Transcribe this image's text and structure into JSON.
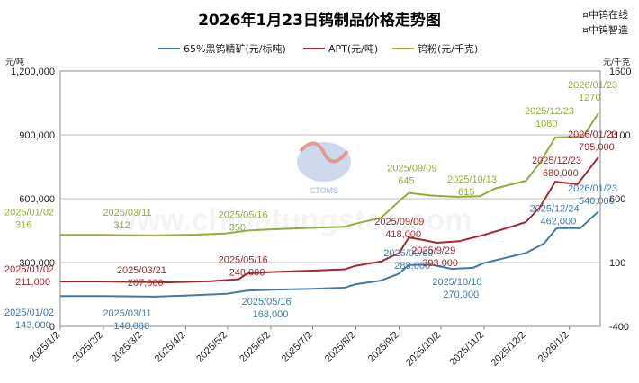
{
  "brand": {
    "line1": "¤中钨在线",
    "line2": "¤中钨智造"
  },
  "watermark": {
    "url": "www.chinatungsten.com",
    "logo_text": "CTOMS"
  },
  "colors": {
    "ore": "#3f7aab",
    "apt": "#a3282a",
    "powder": "#8faf3c",
    "grid": "#bdbdbd"
  },
  "chart_data": {
    "type": "line",
    "title": "2026年1月23日钨制品价格走势图",
    "left_axis": {
      "unit": "元/吨",
      "min": 0,
      "max": 1200000,
      "ticks": [
        "0",
        "300,000",
        "600,000",
        "900,000",
        "1,200,000"
      ],
      "tick_values": [
        0,
        300000,
        600000,
        900000,
        1200000
      ]
    },
    "right_axis": {
      "unit": "元/千克",
      "min": -400,
      "max": 1600,
      "ticks": [
        "-400",
        "100",
        "600",
        "1100",
        "1600"
      ],
      "tick_values": [
        -400,
        100,
        600,
        1100,
        1600
      ]
    },
    "x_axis": {
      "ticks": [
        "2025/1/2",
        "2025/2/2",
        "2025/3/2",
        "2025/4/2",
        "2025/5/2",
        "2025/6/2",
        "2025/7/2",
        "2025/8/2",
        "2025/9/2",
        "2025/10/2",
        "2025/11/2",
        "2025/12/2",
        "2026/1/2"
      ]
    },
    "grid": true,
    "legend_position": "top",
    "series": [
      {
        "name": "65%黑钨精矿(元/标吨)",
        "axis": "left",
        "points": [
          [
            "2025/1/2",
            143000
          ],
          [
            "2025/2/1",
            143000
          ],
          [
            "2025/3/11",
            140000
          ],
          [
            "2025/4/1",
            145000
          ],
          [
            "2025/5/1",
            153000
          ],
          [
            "2025/5/16",
            168000
          ],
          [
            "2025/6/2",
            172000
          ],
          [
            "2025/7/2",
            176000
          ],
          [
            "2025/7/25",
            182000
          ],
          [
            "2025/8/2",
            198000
          ],
          [
            "2025/8/20",
            215000
          ],
          [
            "2025/9/2",
            248000
          ],
          [
            "2025/9/9",
            288000
          ],
          [
            "2025/9/25",
            290000
          ],
          [
            "2025/10/10",
            270000
          ],
          [
            "2025/10/25",
            275000
          ],
          [
            "2025/11/2",
            298000
          ],
          [
            "2025/11/15",
            318000
          ],
          [
            "2025/12/2",
            345000
          ],
          [
            "2025/12/15",
            390000
          ],
          [
            "2025/12/24",
            462000
          ],
          [
            "2026/1/10",
            462000
          ],
          [
            "2026/1/23",
            540000
          ]
        ]
      },
      {
        "name": "APT(元/吨)",
        "axis": "left",
        "points": [
          [
            "2025/1/2",
            211000
          ],
          [
            "2025/2/1",
            211000
          ],
          [
            "2025/3/21",
            207000
          ],
          [
            "2025/4/20",
            212000
          ],
          [
            "2025/5/10",
            222000
          ],
          [
            "2025/5/16",
            248000
          ],
          [
            "2025/6/2",
            255000
          ],
          [
            "2025/7/2",
            262000
          ],
          [
            "2025/7/25",
            268000
          ],
          [
            "2025/8/2",
            285000
          ],
          [
            "2025/8/20",
            305000
          ],
          [
            "2025/9/2",
            345000
          ],
          [
            "2025/9/9",
            418000
          ],
          [
            "2025/9/20",
            405000
          ],
          [
            "2025/9/29",
            393000
          ],
          [
            "2025/10/15",
            400000
          ],
          [
            "2025/11/2",
            430000
          ],
          [
            "2025/11/20",
            465000
          ],
          [
            "2025/12/2",
            490000
          ],
          [
            "2025/12/12",
            560000
          ],
          [
            "2025/12/23",
            680000
          ],
          [
            "2026/1/8",
            668000
          ],
          [
            "2026/1/23",
            795000
          ]
        ]
      },
      {
        "name": "钨粉(元/千克)",
        "axis": "right",
        "points": [
          [
            "2025/1/2",
            316
          ],
          [
            "2025/2/1",
            316
          ],
          [
            "2025/3/11",
            312
          ],
          [
            "2025/4/10",
            318
          ],
          [
            "2025/5/1",
            328
          ],
          [
            "2025/5/16",
            350
          ],
          [
            "2025/6/2",
            360
          ],
          [
            "2025/7/2",
            372
          ],
          [
            "2025/7/25",
            380
          ],
          [
            "2025/8/2",
            405
          ],
          [
            "2025/8/20",
            450
          ],
          [
            "2025/9/2",
            580
          ],
          [
            "2025/9/9",
            645
          ],
          [
            "2025/9/25",
            625
          ],
          [
            "2025/10/13",
            615
          ],
          [
            "2025/10/30",
            620
          ],
          [
            "2025/11/10",
            680
          ],
          [
            "2025/12/2",
            740
          ],
          [
            "2025/12/12",
            880
          ],
          [
            "2025/12/23",
            1080
          ],
          [
            "2026/1/12",
            1085
          ],
          [
            "2026/1/23",
            1270
          ]
        ]
      }
    ],
    "annotations": [
      {
        "series": 0,
        "date": "2025/1/2",
        "value": 143000,
        "date_label": "2025/01/02",
        "value_label": "143,000"
      },
      {
        "series": 0,
        "date": "2025/3/11",
        "value": 140000,
        "date_label": "2025/03/11",
        "value_label": "140,000"
      },
      {
        "series": 0,
        "date": "2025/5/16",
        "value": 168000,
        "date_label": "2025/05/16",
        "value_label": "168,000"
      },
      {
        "series": 0,
        "date": "2025/9/9",
        "value": 288000,
        "date_label": "2025/09/09",
        "value_label": "288,000"
      },
      {
        "series": 0,
        "date": "2025/10/10",
        "value": 270000,
        "date_label": "2025/10/10",
        "value_label": "270,000"
      },
      {
        "series": 0,
        "date": "2025/12/24",
        "value": 462000,
        "date_label": "2025/12/24",
        "value_label": "462,000"
      },
      {
        "series": 0,
        "date": "2026/1/23",
        "value": 540000,
        "date_label": "2026/01/23",
        "value_label": "540,000"
      },
      {
        "series": 1,
        "date": "2025/1/2",
        "value": 211000,
        "date_label": "2025/01/02",
        "value_label": "211,000"
      },
      {
        "series": 1,
        "date": "2025/3/21",
        "value": 207000,
        "date_label": "2025/03/21",
        "value_label": "207,000"
      },
      {
        "series": 1,
        "date": "2025/5/16",
        "value": 248000,
        "date_label": "2025/05/16",
        "value_label": "248,000"
      },
      {
        "series": 1,
        "date": "2025/9/9",
        "value": 418000,
        "date_label": "2025/09/09",
        "value_label": "418,000"
      },
      {
        "series": 1,
        "date": "2025/9/29",
        "value": 393000,
        "date_label": "2025/9/29",
        "value_label": "393,000"
      },
      {
        "series": 1,
        "date": "2025/12/23",
        "value": 680000,
        "date_label": "2025/12/23",
        "value_label": "680,000"
      },
      {
        "series": 1,
        "date": "2026/1/23",
        "value": 795000,
        "date_label": "2026/01/23",
        "value_label": "795,000"
      },
      {
        "series": 2,
        "date": "2025/1/2",
        "value": 316,
        "date_label": "2025/01/02",
        "value_label": "316"
      },
      {
        "series": 2,
        "date": "2025/3/11",
        "value": 312,
        "date_label": "2025/03/11",
        "value_label": "312"
      },
      {
        "series": 2,
        "date": "2025/5/16",
        "value": 350,
        "date_label": "2025/05/16",
        "value_label": "350"
      },
      {
        "series": 2,
        "date": "2025/9/9",
        "value": 645,
        "date_label": "2025/09/09",
        "value_label": "645"
      },
      {
        "series": 2,
        "date": "2025/10/13",
        "value": 615,
        "date_label": "2025/10/13",
        "value_label": "615"
      },
      {
        "series": 2,
        "date": "2025/12/23",
        "value": 1080,
        "date_label": "2025/12/23",
        "value_label": "1080"
      },
      {
        "series": 2,
        "date": "2026/1/23",
        "value": 1270,
        "date_label": "2026/01/23",
        "value_label": "1270"
      }
    ]
  }
}
